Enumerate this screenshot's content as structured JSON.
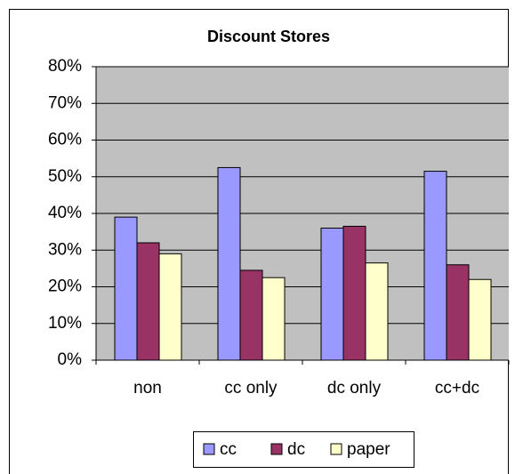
{
  "chart_data": {
    "type": "bar",
    "title": "Discount Stores",
    "categories": [
      "non",
      "cc only",
      "dc only",
      "cc+dc"
    ],
    "series": [
      {
        "name": "cc",
        "color": "#9999ff",
        "values": [
          39,
          52.5,
          36,
          51.5
        ]
      },
      {
        "name": "dc",
        "color": "#993366",
        "values": [
          32,
          24.5,
          36.5,
          26
        ]
      },
      {
        "name": "paper",
        "color": "#ffffcc",
        "values": [
          29,
          22.5,
          26.5,
          22
        ]
      }
    ],
    "ylim": [
      0,
      80
    ],
    "yticks": [
      {
        "value": 0,
        "label": "0%"
      },
      {
        "value": 10,
        "label": "10%"
      },
      {
        "value": 20,
        "label": "20%"
      },
      {
        "value": 30,
        "label": "30%"
      },
      {
        "value": 40,
        "label": "40%"
      },
      {
        "value": 50,
        "label": "50%"
      },
      {
        "value": 60,
        "label": "60%"
      },
      {
        "value": 70,
        "label": "70%"
      },
      {
        "value": 80,
        "label": "80%"
      }
    ],
    "grid": true,
    "legend": "bottom"
  }
}
